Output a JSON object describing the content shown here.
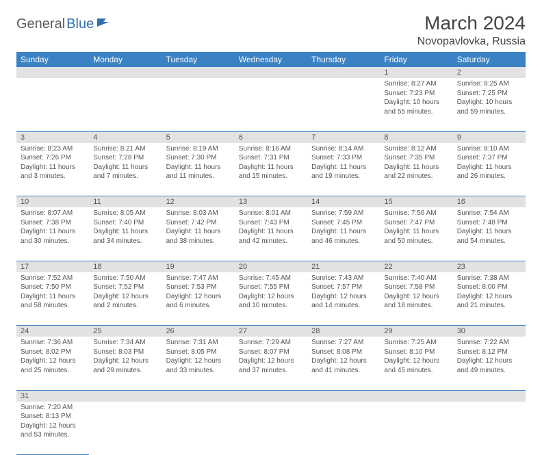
{
  "logo": {
    "general": "General",
    "blue": "Blue"
  },
  "title": "March 2024",
  "location": "Novopavlovka, Russia",
  "colors": {
    "header_bg": "#3b82c4",
    "header_text": "#ffffff",
    "daynum_bg": "#e2e2e2",
    "cell_border": "#3b82c4",
    "text": "#555555",
    "logo_gray": "#5a5a5a",
    "logo_blue": "#2f6fb3"
  },
  "weekdays": [
    "Sunday",
    "Monday",
    "Tuesday",
    "Wednesday",
    "Thursday",
    "Friday",
    "Saturday"
  ],
  "weeks": [
    [
      null,
      null,
      null,
      null,
      null,
      {
        "n": "1",
        "sr": "Sunrise: 8:27 AM",
        "ss": "Sunset: 7:23 PM",
        "dl": "Daylight: 10 hours and 55 minutes."
      },
      {
        "n": "2",
        "sr": "Sunrise: 8:25 AM",
        "ss": "Sunset: 7:25 PM",
        "dl": "Daylight: 10 hours and 59 minutes."
      }
    ],
    [
      {
        "n": "3",
        "sr": "Sunrise: 8:23 AM",
        "ss": "Sunset: 7:26 PM",
        "dl": "Daylight: 11 hours and 3 minutes."
      },
      {
        "n": "4",
        "sr": "Sunrise: 8:21 AM",
        "ss": "Sunset: 7:28 PM",
        "dl": "Daylight: 11 hours and 7 minutes."
      },
      {
        "n": "5",
        "sr": "Sunrise: 8:19 AM",
        "ss": "Sunset: 7:30 PM",
        "dl": "Daylight: 11 hours and 11 minutes."
      },
      {
        "n": "6",
        "sr": "Sunrise: 8:16 AM",
        "ss": "Sunset: 7:31 PM",
        "dl": "Daylight: 11 hours and 15 minutes."
      },
      {
        "n": "7",
        "sr": "Sunrise: 8:14 AM",
        "ss": "Sunset: 7:33 PM",
        "dl": "Daylight: 11 hours and 19 minutes."
      },
      {
        "n": "8",
        "sr": "Sunrise: 8:12 AM",
        "ss": "Sunset: 7:35 PM",
        "dl": "Daylight: 11 hours and 22 minutes."
      },
      {
        "n": "9",
        "sr": "Sunrise: 8:10 AM",
        "ss": "Sunset: 7:37 PM",
        "dl": "Daylight: 11 hours and 26 minutes."
      }
    ],
    [
      {
        "n": "10",
        "sr": "Sunrise: 8:07 AM",
        "ss": "Sunset: 7:38 PM",
        "dl": "Daylight: 11 hours and 30 minutes."
      },
      {
        "n": "11",
        "sr": "Sunrise: 8:05 AM",
        "ss": "Sunset: 7:40 PM",
        "dl": "Daylight: 11 hours and 34 minutes."
      },
      {
        "n": "12",
        "sr": "Sunrise: 8:03 AM",
        "ss": "Sunset: 7:42 PM",
        "dl": "Daylight: 11 hours and 38 minutes."
      },
      {
        "n": "13",
        "sr": "Sunrise: 8:01 AM",
        "ss": "Sunset: 7:43 PM",
        "dl": "Daylight: 11 hours and 42 minutes."
      },
      {
        "n": "14",
        "sr": "Sunrise: 7:59 AM",
        "ss": "Sunset: 7:45 PM",
        "dl": "Daylight: 11 hours and 46 minutes."
      },
      {
        "n": "15",
        "sr": "Sunrise: 7:56 AM",
        "ss": "Sunset: 7:47 PM",
        "dl": "Daylight: 11 hours and 50 minutes."
      },
      {
        "n": "16",
        "sr": "Sunrise: 7:54 AM",
        "ss": "Sunset: 7:48 PM",
        "dl": "Daylight: 11 hours and 54 minutes."
      }
    ],
    [
      {
        "n": "17",
        "sr": "Sunrise: 7:52 AM",
        "ss": "Sunset: 7:50 PM",
        "dl": "Daylight: 11 hours and 58 minutes."
      },
      {
        "n": "18",
        "sr": "Sunrise: 7:50 AM",
        "ss": "Sunset: 7:52 PM",
        "dl": "Daylight: 12 hours and 2 minutes."
      },
      {
        "n": "19",
        "sr": "Sunrise: 7:47 AM",
        "ss": "Sunset: 7:53 PM",
        "dl": "Daylight: 12 hours and 6 minutes."
      },
      {
        "n": "20",
        "sr": "Sunrise: 7:45 AM",
        "ss": "Sunset: 7:55 PM",
        "dl": "Daylight: 12 hours and 10 minutes."
      },
      {
        "n": "21",
        "sr": "Sunrise: 7:43 AM",
        "ss": "Sunset: 7:57 PM",
        "dl": "Daylight: 12 hours and 14 minutes."
      },
      {
        "n": "22",
        "sr": "Sunrise: 7:40 AM",
        "ss": "Sunset: 7:58 PM",
        "dl": "Daylight: 12 hours and 18 minutes."
      },
      {
        "n": "23",
        "sr": "Sunrise: 7:38 AM",
        "ss": "Sunset: 8:00 PM",
        "dl": "Daylight: 12 hours and 21 minutes."
      }
    ],
    [
      {
        "n": "24",
        "sr": "Sunrise: 7:36 AM",
        "ss": "Sunset: 8:02 PM",
        "dl": "Daylight: 12 hours and 25 minutes."
      },
      {
        "n": "25",
        "sr": "Sunrise: 7:34 AM",
        "ss": "Sunset: 8:03 PM",
        "dl": "Daylight: 12 hours and 29 minutes."
      },
      {
        "n": "26",
        "sr": "Sunrise: 7:31 AM",
        "ss": "Sunset: 8:05 PM",
        "dl": "Daylight: 12 hours and 33 minutes."
      },
      {
        "n": "27",
        "sr": "Sunrise: 7:29 AM",
        "ss": "Sunset: 8:07 PM",
        "dl": "Daylight: 12 hours and 37 minutes."
      },
      {
        "n": "28",
        "sr": "Sunrise: 7:27 AM",
        "ss": "Sunset: 8:08 PM",
        "dl": "Daylight: 12 hours and 41 minutes."
      },
      {
        "n": "29",
        "sr": "Sunrise: 7:25 AM",
        "ss": "Sunset: 8:10 PM",
        "dl": "Daylight: 12 hours and 45 minutes."
      },
      {
        "n": "30",
        "sr": "Sunrise: 7:22 AM",
        "ss": "Sunset: 8:12 PM",
        "dl": "Daylight: 12 hours and 49 minutes."
      }
    ],
    [
      {
        "n": "31",
        "sr": "Sunrise: 7:20 AM",
        "ss": "Sunset: 8:13 PM",
        "dl": "Daylight: 12 hours and 53 minutes."
      },
      null,
      null,
      null,
      null,
      null,
      null
    ]
  ]
}
